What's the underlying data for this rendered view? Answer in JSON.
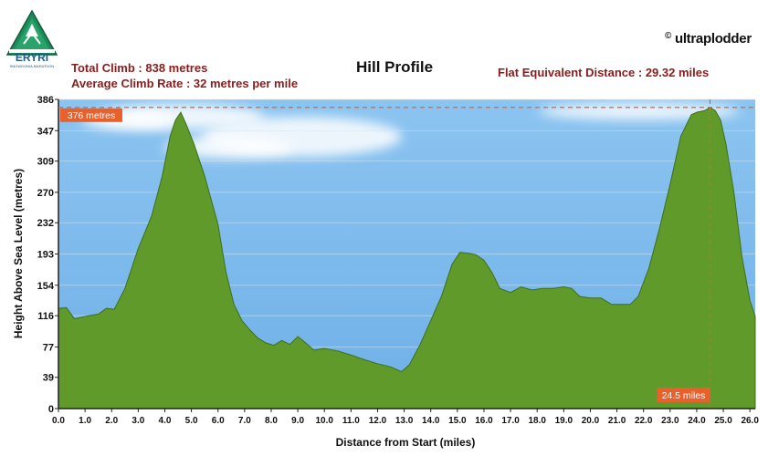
{
  "logo": {
    "top_text": "MARATHON",
    "name": "ERYRI",
    "subtitle": "SNOWDONIA MARATHON",
    "icon": "mountain-icon"
  },
  "brand": "ultraplodder",
  "copyright_symbol": "©",
  "header": {
    "total_climb": "Total Climb : 838 metres",
    "avg_climb_rate": "Average Climb Rate : 32 metres per mile",
    "title": "Hill Profile",
    "flat_equivalent": "Flat Equivalent Distance : 29.32 miles"
  },
  "colors": {
    "sky": "#7ab8ec",
    "terrain": "#5f9a2a",
    "terrain_edge": "#3f6e17",
    "stat_text": "#8b1c1c",
    "marker": "#e8602c"
  },
  "chart_data": {
    "type": "area",
    "title": "Hill Profile",
    "xlabel": "Distance from Start (miles)",
    "ylabel": "Height Above Sea Level (metres)",
    "xlim": [
      0,
      26.2
    ],
    "ylim": [
      0,
      386
    ],
    "x_ticks": [
      "0.0",
      "1.0",
      "2.0",
      "3.0",
      "4.0",
      "5.0",
      "6.0",
      "7.0",
      "8.0",
      "9.0",
      "10.0",
      "11.0",
      "12.0",
      "13.0",
      "14.0",
      "15.0",
      "16.0",
      "17.0",
      "18.0",
      "19.0",
      "20.0",
      "21.0",
      "22.0",
      "23.0",
      "24.0",
      "25.0",
      "26.0"
    ],
    "y_ticks": [
      "0",
      "39",
      "77",
      "116",
      "154",
      "193",
      "232",
      "270",
      "309",
      "347",
      "386"
    ],
    "x": [
      0.0,
      0.3,
      0.6,
      1.0,
      1.5,
      1.8,
      2.1,
      2.5,
      3.0,
      3.5,
      3.9,
      4.2,
      4.4,
      4.6,
      4.8,
      5.1,
      5.5,
      6.0,
      6.3,
      6.6,
      6.9,
      7.2,
      7.5,
      7.8,
      8.1,
      8.4,
      8.7,
      9.0,
      9.3,
      9.6,
      10.0,
      10.5,
      11.0,
      11.5,
      12.0,
      12.5,
      12.9,
      13.2,
      13.6,
      14.0,
      14.4,
      14.8,
      15.1,
      15.4,
      15.7,
      16.0,
      16.3,
      16.6,
      17.0,
      17.4,
      17.8,
      18.2,
      18.6,
      19.0,
      19.3,
      19.6,
      20.0,
      20.4,
      20.8,
      21.2,
      21.5,
      21.8,
      22.2,
      22.6,
      23.0,
      23.4,
      23.8,
      24.0,
      24.3,
      24.5,
      24.7,
      24.9,
      25.1,
      25.4,
      25.7,
      26.0,
      26.2
    ],
    "values": [
      125,
      126,
      112,
      115,
      118,
      125,
      124,
      150,
      200,
      240,
      290,
      340,
      360,
      370,
      355,
      330,
      290,
      230,
      170,
      130,
      110,
      98,
      88,
      82,
      79,
      85,
      80,
      90,
      82,
      73,
      75,
      72,
      67,
      61,
      56,
      52,
      46,
      55,
      80,
      110,
      140,
      180,
      195,
      194,
      192,
      185,
      170,
      150,
      145,
      152,
      148,
      150,
      150,
      152,
      150,
      140,
      138,
      138,
      130,
      130,
      130,
      140,
      175,
      225,
      280,
      340,
      367,
      370,
      372,
      376,
      372,
      360,
      330,
      270,
      190,
      135,
      115
    ],
    "annotations": {
      "peak_label": "376 metres",
      "peak_value": 376,
      "peak_x_label": "24.5 miles",
      "peak_x": 24.5
    },
    "grid": true
  }
}
